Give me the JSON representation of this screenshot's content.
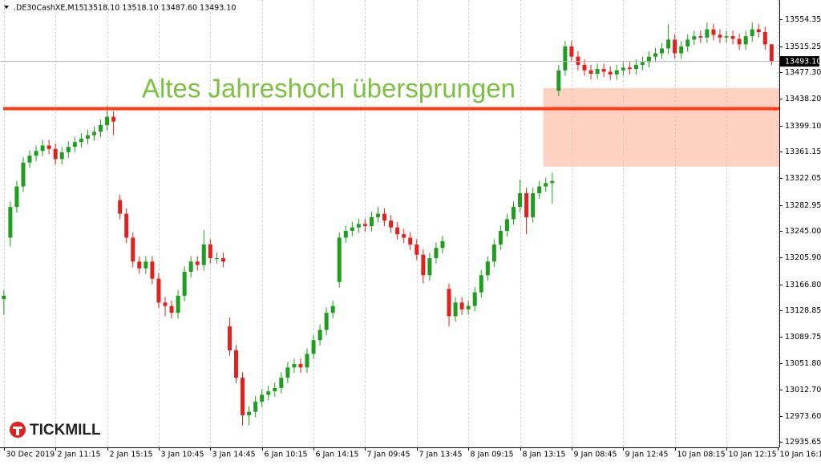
{
  "chart_data": {
    "type": "candlestick",
    "title": ".DE30CashXE,M15",
    "subtitle": "13518.10 13518.10 13487.60 13493.10",
    "annotation": "Altes Jahreshoch übersprungen",
    "annotation_color": "#7cc142",
    "logo": "TICKMILL",
    "up_color": "#1e9e1e",
    "down_color": "#e3201b",
    "grid": true,
    "xlim": [
      -0.6,
      120.2
    ],
    "ylim": [
      12928,
      13583
    ],
    "xticks": [
      {
        "value": 0,
        "label": "30 Dec 2019"
      },
      {
        "value": 8,
        "label": "2 Jan 11:15"
      },
      {
        "value": 16,
        "label": "2 Jan 15:15"
      },
      {
        "value": 24,
        "label": "3 Jan 10:45"
      },
      {
        "value": 32,
        "label": "3 Jan 14:45"
      },
      {
        "value": 40,
        "label": "6 Jan 10:15"
      },
      {
        "value": 48,
        "label": "6 Jan 14:15"
      },
      {
        "value": 56,
        "label": "7 Jan 09:45"
      },
      {
        "value": 64,
        "label": "7 Jan 13:45"
      },
      {
        "value": 72,
        "label": "8 Jan 09:15"
      },
      {
        "value": 80,
        "label": "8 Jan 13:15"
      },
      {
        "value": 88,
        "label": "9 Jan 08:45"
      },
      {
        "value": 96,
        "label": "9 Jan 12:45"
      },
      {
        "value": 104,
        "label": "10 Jan 08:15"
      },
      {
        "value": 112,
        "label": "10 Jan 12:15"
      },
      {
        "value": 120,
        "label": "10 Jan 16:15"
      }
    ],
    "yticks": [
      {
        "value": 12935.65,
        "label": "12935.65"
      },
      {
        "value": 12973.6,
        "label": "12973.60"
      },
      {
        "value": 13012.7,
        "label": "13012.70"
      },
      {
        "value": 13051.8,
        "label": "13051.80"
      },
      {
        "value": 13089.75,
        "label": "13089.75"
      },
      {
        "value": 13128.85,
        "label": "13128.85"
      },
      {
        "value": 13166.8,
        "label": "13166.80"
      },
      {
        "value": 13205.9,
        "label": "13205.90"
      },
      {
        "value": 13245,
        "label": "13245.00"
      },
      {
        "value": 13282.95,
        "label": "13282.95"
      },
      {
        "value": 13322.05,
        "label": "13322.05"
      },
      {
        "value": 13361.15,
        "label": "13361.15"
      },
      {
        "value": 13399.1,
        "label": "13399.10"
      },
      {
        "value": 13438.2,
        "label": "13438.20"
      },
      {
        "value": 13477.3,
        "label": "13477.30"
      },
      {
        "value": 13515.25,
        "label": "13515.25"
      },
      {
        "value": 13554.35,
        "label": "13554.35"
      }
    ],
    "last_price": {
      "value": 13493.1,
      "label": "13493.10"
    },
    "level": {
      "value": 13424,
      "color": "#ff3a14"
    },
    "zone": {
      "from": 84,
      "low": 13339,
      "high": 13454,
      "color": "#fdd2c2"
    },
    "open": [
      13145,
      13235,
      13280,
      13310,
      13345,
      13355,
      13362,
      13370,
      13365,
      13350,
      13360,
      13368,
      13375,
      13380,
      13385,
      13390,
      13400,
      13412,
      13290,
      13270,
      13235,
      13200,
      13190,
      13200,
      13175,
      13140,
      13135,
      13125,
      13150,
      13185,
      13200,
      13195,
      13225,
      13205,
      13205,
      13105,
      13070,
      13030,
      12975,
      12980,
      12995,
      13005,
      13010,
      13015,
      13030,
      13045,
      13050,
      13045,
      13065,
      13085,
      13100,
      13125,
      13170,
      13235,
      13245,
      13250,
      13255,
      13252,
      13265,
      13270,
      13260,
      13250,
      13240,
      13235,
      13225,
      13210,
      13180,
      13205,
      13220,
      13160,
      13120,
      13140,
      13130,
      13135,
      13155,
      13180,
      13200,
      13225,
      13245,
      13262,
      13280,
      13300,
      13265,
      13300,
      13310,
      13315,
      13450,
      13480,
      13515,
      13500,
      13488,
      13480,
      13475,
      13482,
      13478,
      13474,
      13480,
      13484,
      13482,
      13488,
      13492,
      13500,
      13505,
      13512,
      13525,
      13505,
      13515,
      13525,
      13530,
      13528,
      13540,
      13532,
      13528,
      13530,
      13526,
      13518,
      13530,
      13540,
      13536,
      13518.1
    ],
    "high": [
      13158,
      13288,
      13318,
      13353,
      13363,
      13370,
      13378,
      13378,
      13373,
      13368,
      13376,
      13383,
      13388,
      13393,
      13398,
      13408,
      13428,
      13420,
      13298,
      13278,
      13243,
      13208,
      13208,
      13208,
      13183,
      13148,
      13143,
      13158,
      13193,
      13208,
      13208,
      13246,
      13233,
      13213,
      13213,
      13118,
      13078,
      13038,
      12988,
      13003,
      13013,
      13018,
      13023,
      13038,
      13053,
      13058,
      13058,
      13073,
      13093,
      13108,
      13133,
      13143,
      13243,
      13253,
      13258,
      13263,
      13263,
      13273,
      13280,
      13278,
      13268,
      13258,
      13248,
      13243,
      13233,
      13218,
      13213,
      13228,
      13238,
      13168,
      13148,
      13148,
      13143,
      13163,
      13188,
      13208,
      13233,
      13253,
      13270,
      13288,
      13320,
      13308,
      13308,
      13318,
      13323,
      13330,
      13488,
      13523,
      13523,
      13508,
      13496,
      13488,
      13490,
      13490,
      13486,
      13488,
      13492,
      13492,
      13496,
      13500,
      13508,
      13513,
      13520,
      13548,
      13533,
      13523,
      13533,
      13538,
      13538,
      13550,
      13548,
      13540,
      13538,
      13538,
      13534,
      13538,
      13550,
      13548,
      13544,
      13518.1
    ],
    "low": [
      13122,
      13222,
      13272,
      13302,
      13337,
      13347,
      13354,
      13357,
      13342,
      13342,
      13352,
      13360,
      13367,
      13372,
      13377,
      13382,
      13392,
      13385,
      13262,
      13227,
      13192,
      13182,
      13182,
      13167,
      13132,
      13120,
      13117,
      13117,
      13142,
      13177,
      13187,
      13187,
      13197,
      13197,
      13192,
      13062,
      13022,
      12960,
      12960,
      12972,
      12987,
      12997,
      13002,
      13007,
      13022,
      13037,
      13037,
      13037,
      13057,
      13077,
      13092,
      13117,
      13162,
      13227,
      13237,
      13242,
      13244,
      13244,
      13257,
      13252,
      13242,
      13232,
      13227,
      13217,
      13202,
      13168,
      13172,
      13197,
      13212,
      13105,
      13112,
      13122,
      13122,
      13127,
      13147,
      13172,
      13192,
      13217,
      13237,
      13254,
      13272,
      13240,
      13257,
      13292,
      13302,
      13285,
      13442,
      13472,
      13492,
      13480,
      13472,
      13467,
      13467,
      13470,
      13466,
      13466,
      13472,
      13474,
      13474,
      13480,
      13484,
      13492,
      13497,
      13504,
      13497,
      13497,
      13507,
      13517,
      13520,
      13520,
      13524,
      13520,
      13520,
      13518,
      13510,
      13510,
      13522,
      13528,
      13510,
      13487.6
    ],
    "close": [
      13150,
      13280,
      13310,
      13345,
      13355,
      13362,
      13370,
      13365,
      13350,
      13360,
      13368,
      13375,
      13380,
      13385,
      13390,
      13400,
      13412,
      13405,
      13270,
      13235,
      13200,
      13190,
      13200,
      13175,
      13140,
      13135,
      13125,
      13150,
      13185,
      13200,
      13195,
      13225,
      13205,
      13205,
      13200,
      13070,
      13030,
      12975,
      12980,
      12995,
      13005,
      13010,
      13015,
      13030,
      13045,
      13050,
      13045,
      13065,
      13085,
      13100,
      13125,
      13135,
      13235,
      13245,
      13250,
      13255,
      13252,
      13265,
      13270,
      13260,
      13250,
      13240,
      13235,
      13225,
      13210,
      13180,
      13205,
      13220,
      13230,
      13120,
      13140,
      13130,
      13135,
      13155,
      13180,
      13200,
      13225,
      13245,
      13262,
      13280,
      13300,
      13265,
      13300,
      13310,
      13315,
      13318,
      13480,
      13515,
      13500,
      13488,
      13480,
      13475,
      13482,
      13478,
      13474,
      13480,
      13484,
      13482,
      13488,
      13492,
      13500,
      13505,
      13512,
      13525,
      13505,
      13515,
      13525,
      13530,
      13528,
      13540,
      13532,
      13528,
      13530,
      13526,
      13518,
      13530,
      13540,
      13536,
      13518,
      13493.1
    ]
  }
}
